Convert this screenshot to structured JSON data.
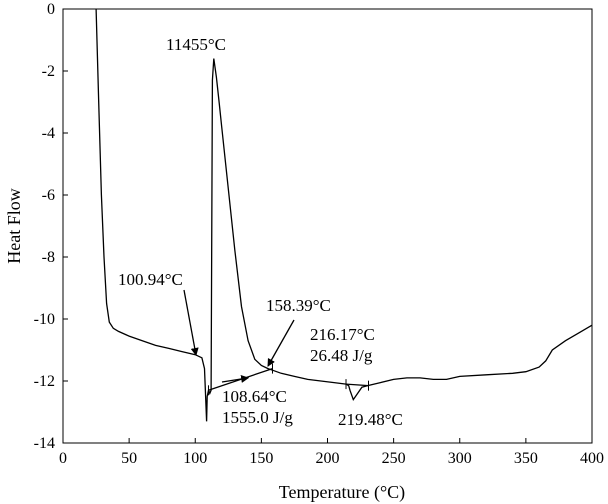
{
  "chart_data": {
    "type": "line",
    "xlabel": "Temperature (°C)",
    "ylabel": "Heat Flow",
    "xlim": [
      0,
      400
    ],
    "ylim": [
      -14,
      0
    ],
    "xticks": [
      0,
      50,
      100,
      150,
      200,
      250,
      300,
      350,
      400
    ],
    "yticks": [
      0,
      -2,
      -4,
      -6,
      -8,
      -10,
      -12,
      -14
    ],
    "grid": false,
    "legend": "none",
    "series": [
      {
        "color": "#000000",
        "x": [
          25,
          27,
          29,
          31,
          33,
          35,
          38,
          42,
          50,
          60,
          70,
          80,
          90,
          100,
          105,
          107,
          108.6,
          109,
          110,
          111,
          112,
          113,
          114,
          116,
          118,
          120,
          125,
          130,
          135,
          140,
          145,
          150,
          155,
          158.4,
          165,
          175,
          185,
          195,
          205,
          214,
          216,
          217,
          219.5,
          222,
          226,
          230,
          240,
          250,
          260,
          270,
          280,
          290,
          300,
          320,
          340,
          350,
          360,
          365,
          370,
          380,
          390,
          400
        ],
        "y": [
          0,
          -3,
          -6,
          -8,
          -9.5,
          -10.1,
          -10.3,
          -10.4,
          -10.55,
          -10.7,
          -10.85,
          -10.95,
          -11.05,
          -11.15,
          -11.25,
          -11.6,
          -13.3,
          -12.5,
          -12.3,
          -12.4,
          -12.3,
          -2.3,
          -1.6,
          -2.2,
          -3,
          -3.8,
          -5.8,
          -7.8,
          -9.6,
          -10.7,
          -11.3,
          -11.5,
          -11.6,
          -11.65,
          -11.75,
          -11.85,
          -11.95,
          -12.0,
          -12.05,
          -12.1,
          -12.15,
          -12.3,
          -12.6,
          -12.45,
          -12.2,
          -12.15,
          -12.05,
          -11.95,
          -11.9,
          -11.9,
          -11.95,
          -11.95,
          -11.85,
          -11.8,
          -11.75,
          -11.7,
          -11.55,
          -11.35,
          -11.0,
          -10.7,
          -10.45,
          -10.2
        ]
      }
    ],
    "baselines": [
      {
        "x": [
          110,
          158.4
        ],
        "y": [
          -12.3,
          -11.6
        ]
      },
      {
        "x": [
          214,
          231
        ],
        "y": [
          -12.1,
          -12.15
        ]
      }
    ],
    "annotations": [
      {
        "id": "onset1",
        "label": "100.94°C",
        "point": [
          103,
          -11.15
        ]
      },
      {
        "id": "peak1",
        "label": "11455°C",
        "point": [
          114,
          -1.6
        ]
      },
      {
        "id": "end1",
        "label": "158.39°C",
        "point": [
          158.4,
          -11.65
        ]
      },
      {
        "id": "enthalpy1",
        "label": "108.64°C\n1555.0 J/g",
        "point": [
          140,
          -11.9
        ]
      },
      {
        "id": "enthalpy2",
        "label": "216.17°C\n26.48 J/g"
      },
      {
        "id": "peak2",
        "label": "219.48°C"
      }
    ]
  }
}
